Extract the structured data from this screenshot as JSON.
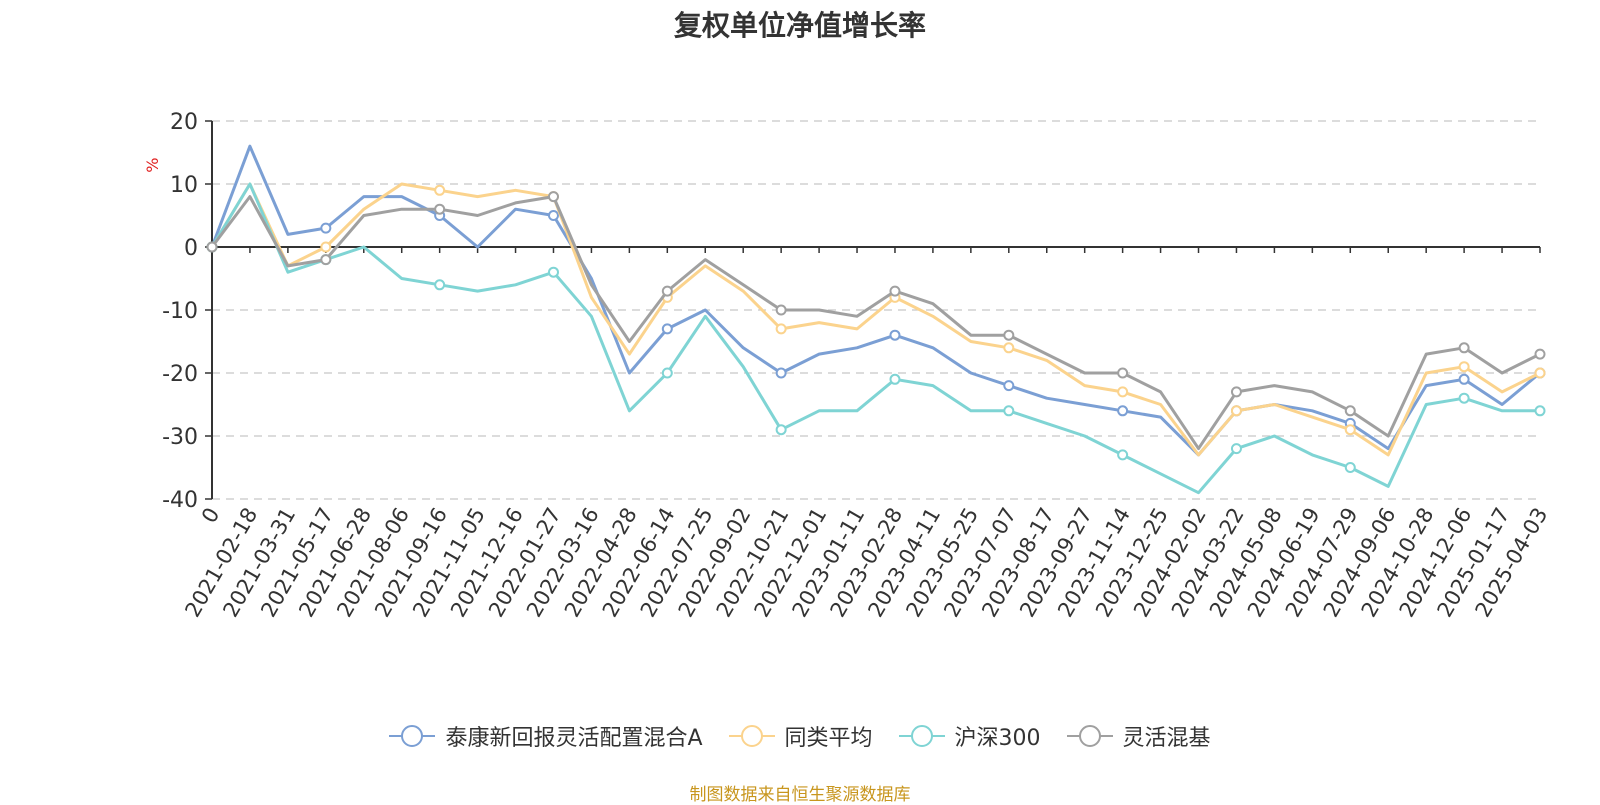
{
  "chart_data": {
    "type": "line",
    "title": "复权单位净值增长率",
    "ylabel": "%",
    "ylim": [
      -40,
      20
    ],
    "yticks": [
      20,
      10,
      0,
      -10,
      -20,
      -30,
      -40
    ],
    "grid": true,
    "legend_position": "bottom",
    "x_tick_labels": [
      "0",
      "2021-02-18",
      "2021-03-31",
      "2021-05-17",
      "2021-06-28",
      "2021-08-06",
      "2021-09-16",
      "2021-11-05",
      "2021-12-16",
      "2022-01-27",
      "2022-03-16",
      "2022-04-28",
      "2022-06-14",
      "2022-07-25",
      "2022-09-02",
      "2022-10-21",
      "2022-12-01",
      "2023-01-11",
      "2023-02-28",
      "2023-04-11",
      "2023-05-25",
      "2023-07-07",
      "2023-08-17",
      "2023-09-27",
      "2023-11-14",
      "2023-12-25",
      "2024-02-02",
      "2024-03-22",
      "2024-05-08",
      "2024-06-19",
      "2024-07-29",
      "2024-09-06",
      "2024-10-28",
      "2024-12-06",
      "2025-01-17",
      "2025-04-03"
    ],
    "x": [
      "0",
      "2021-02-18",
      "2021-03-31",
      "2021-05-17",
      "2021-06-28",
      "2021-08-06",
      "2021-09-16",
      "2021-11-05",
      "2021-12-16",
      "2022-01-27",
      "2022-03-16",
      "2022-04-28",
      "2022-06-14",
      "2022-07-25",
      "2022-09-02",
      "2022-10-21",
      "2022-12-01",
      "2023-01-11",
      "2023-02-28",
      "2023-04-11",
      "2023-05-25",
      "2023-07-07",
      "2023-08-17",
      "2023-09-27",
      "2023-11-14",
      "2023-12-25",
      "2024-02-02",
      "2024-03-22",
      "2024-05-08",
      "2024-06-19",
      "2024-07-29",
      "2024-09-06",
      "2024-10-28",
      "2024-12-06",
      "2025-01-17",
      "2025-04-03"
    ],
    "series": [
      {
        "name": "泰康新回报灵活配置混合A",
        "color": "#7b9fd4",
        "values": [
          0,
          16,
          2,
          3,
          8,
          8,
          5,
          0,
          6,
          5,
          -5,
          -20,
          -13,
          -10,
          -16,
          -20,
          -17,
          -16,
          -14,
          -16,
          -20,
          -22,
          -24,
          -25,
          -26,
          -27,
          -33,
          -26,
          -25,
          -26,
          -28,
          -32,
          -22,
          -21,
          -25,
          -20
        ]
      },
      {
        "name": "同类平均",
        "color": "#fbd38d",
        "values": [
          0,
          10,
          -3,
          0,
          6,
          10,
          9,
          8,
          9,
          8,
          -8,
          -17,
          -8,
          -3,
          -7,
          -13,
          -12,
          -13,
          -8,
          -11,
          -15,
          -16,
          -18,
          -22,
          -23,
          -25,
          -33,
          -26,
          -25,
          -27,
          -29,
          -33,
          -20,
          -19,
          -23,
          -20
        ]
      },
      {
        "name": "沪深300",
        "color": "#7fd4d4",
        "values": [
          0,
          10,
          -4,
          -2,
          0,
          -5,
          -6,
          -7,
          -6,
          -4,
          -11,
          -26,
          -20,
          -11,
          -19,
          -29,
          -26,
          -26,
          -21,
          -22,
          -26,
          -26,
          -28,
          -30,
          -33,
          -36,
          -39,
          -32,
          -30,
          -33,
          -35,
          -38,
          -25,
          -24,
          -26,
          -26
        ]
      },
      {
        "name": "灵活混基",
        "color": "#a0a0a0",
        "values": [
          0,
          8,
          -3,
          -2,
          5,
          6,
          6,
          5,
          7,
          8,
          -6,
          -15,
          -7,
          -2,
          -6,
          -10,
          -10,
          -11,
          -7,
          -9,
          -14,
          -14,
          -17,
          -20,
          -20,
          -23,
          -32,
          -23,
          -22,
          -23,
          -26,
          -30,
          -17,
          -16,
          -20,
          -17
        ]
      }
    ]
  },
  "source_note": "制图数据来自恒生聚源数据库"
}
